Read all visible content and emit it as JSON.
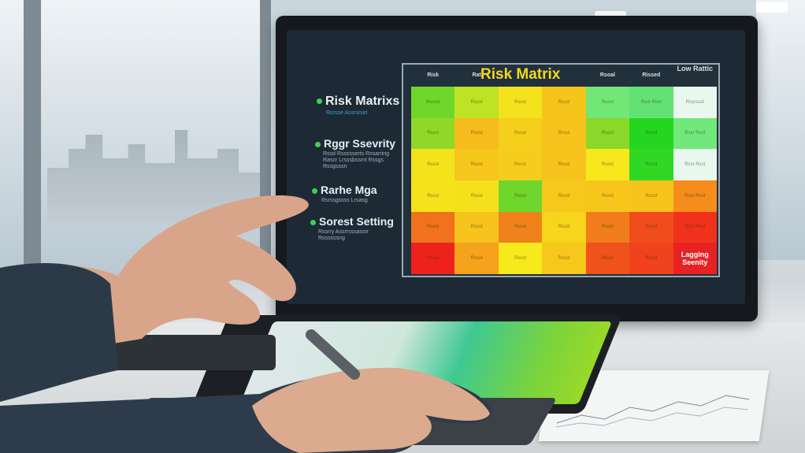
{
  "monitor": {
    "sidebar": [
      {
        "label": "Risk Matrixs",
        "sub": "Rsrsse Assrsrset"
      },
      {
        "label": "Rggr Ssevrity",
        "sub": "Rssd  Rssssserts Rssarring  Rascr Lrsssbssmt  Rssgs Rssgsssn"
      },
      {
        "label": "Rarhe Mga",
        "sub": "Rsrssgssss  Lrsasg"
      },
      {
        "label": "Sorest Setting",
        "sub": "Rssrry Assrrsssassrr  Rssssssng"
      }
    ],
    "matrix": {
      "title": "Risk Matrix",
      "columns": [
        "Risk",
        "Rat",
        "",
        "",
        "Rsoal",
        "Rissed",
        "Low Rattic"
      ],
      "rows": [
        [
          {
            "c": "#6fd62a",
            "t": "Rsssst"
          },
          {
            "c": "#bde324",
            "t": "Rssst"
          },
          {
            "c": "#f4e21c",
            "t": "Rssst"
          },
          {
            "c": "#f6c51c",
            "t": "Rssst"
          },
          {
            "c": "#72e676",
            "t": "Rssst"
          },
          {
            "c": "#62e274",
            "t": "Rssr Rsst"
          },
          {
            "c": "#e9f8ef",
            "t": "Rssrssst"
          }
        ],
        [
          {
            "c": "#8fd82a",
            "t": "Rssst"
          },
          {
            "c": "#f6bb1c",
            "t": "Rssst"
          },
          {
            "c": "#f6ce1c",
            "t": "Rssst"
          },
          {
            "c": "#f6c41c",
            "t": "Rssst"
          },
          {
            "c": "#8ad82a",
            "t": "Rssst"
          },
          {
            "c": "#24d61f",
            "t": "Rssst"
          },
          {
            "c": "#70e87c",
            "t": "Rssr Rsst"
          }
        ],
        [
          {
            "c": "#f3e31c",
            "t": "Rssst"
          },
          {
            "c": "#f6c61c",
            "t": "Rssst"
          },
          {
            "c": "#f6cd1c",
            "t": "Rssst"
          },
          {
            "c": "#f6c41c",
            "t": "Rssst"
          },
          {
            "c": "#f6e81c",
            "t": "Rssst"
          },
          {
            "c": "#30d824",
            "t": "Rssst"
          },
          {
            "c": "#e9f8ef",
            "t": "Rssr Rsst"
          }
        ],
        [
          {
            "c": "#f6e31c",
            "t": "Rssst"
          },
          {
            "c": "#f6e01c",
            "t": "Rssst"
          },
          {
            "c": "#6ed62c",
            "t": "Rssst"
          },
          {
            "c": "#f6c81c",
            "t": "Rssst"
          },
          {
            "c": "#f6c61c",
            "t": "Rssst"
          },
          {
            "c": "#f6c41c",
            "t": "Rssst"
          },
          {
            "c": "#f58c1c",
            "t": "Rssr Rsst"
          }
        ],
        [
          {
            "c": "#f0721c",
            "t": "Rssst"
          },
          {
            "c": "#f6c41c",
            "t": "Rssst"
          },
          {
            "c": "#f0821c",
            "t": "Rssst"
          },
          {
            "c": "#f6d51c",
            "t": "Rssst"
          },
          {
            "c": "#f07c1c",
            "t": "Rssst"
          },
          {
            "c": "#f04c1c",
            "t": "Rssst"
          },
          {
            "c": "#f0321c",
            "t": "Rssr Rsst"
          }
        ],
        [
          {
            "c": "#ee221c",
            "t": "Rssst"
          },
          {
            "c": "#f5a21c",
            "t": "Rssst"
          },
          {
            "c": "#f6ea1c",
            "t": "Rssst"
          },
          {
            "c": "#f6c81c",
            "t": "Rssst"
          },
          {
            "c": "#f0521c",
            "t": "Rssst"
          },
          {
            "c": "#f0421c",
            "t": "Rssst"
          },
          {
            "c": "#e82222",
            "t": "Lagging Seenity",
            "strong": true
          }
        ]
      ]
    }
  }
}
